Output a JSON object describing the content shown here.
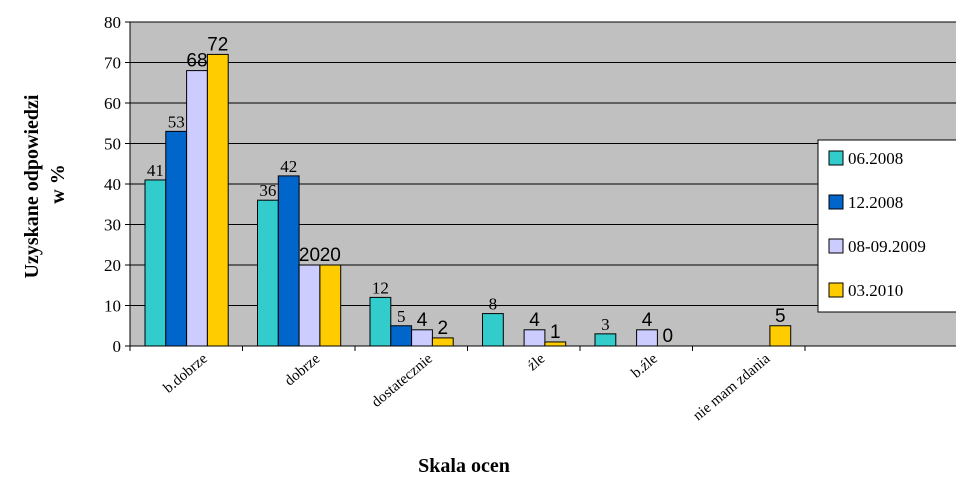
{
  "chart_data": {
    "type": "bar",
    "ylabel": "Uzyskane odpowiedzi w %",
    "ylabel_lines": [
      "Uzyskane odpowiedzi",
      "w %"
    ],
    "xlabel": "Skala ocen",
    "ylim": [
      0,
      80
    ],
    "yticks": [
      0,
      10,
      20,
      30,
      40,
      50,
      60,
      70,
      80
    ],
    "categories": [
      "b.dobrze",
      "dobrze",
      "dostatecznie",
      "źle",
      "b.źle",
      "nie mam zdania"
    ],
    "series": [
      {
        "name": "06.2008",
        "color": "#33CCCC",
        "values": [
          41,
          36,
          12,
          8,
          3,
          null
        ]
      },
      {
        "name": "12.2008",
        "color": "#0066CC",
        "values": [
          53,
          42,
          5,
          null,
          null,
          null
        ]
      },
      {
        "name": "08-09.2009",
        "color": "#CCCCFF",
        "values": [
          68,
          20,
          4,
          4,
          4,
          null
        ]
      },
      {
        "name": "03.2010",
        "color": "#FFCC00",
        "values": [
          72,
          20,
          2,
          1,
          0,
          5
        ]
      }
    ],
    "grid": true,
    "legend": "right",
    "plot_background": "#C0C0C0"
  }
}
